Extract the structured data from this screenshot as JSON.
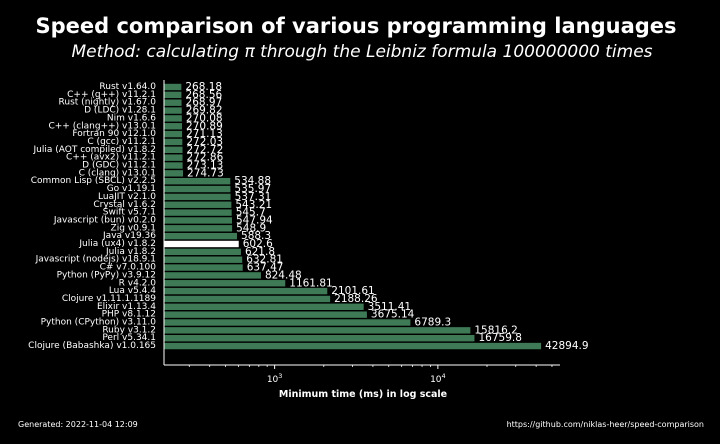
{
  "chart_data": {
    "type": "bar",
    "orientation": "horizontal",
    "title": "Speed comparison of various programming languages",
    "subtitle": "Method: calculating π through the Leibniz formula 100000000 times",
    "xlabel": "Minimum time (ms) in log scale",
    "ylabel": "",
    "xscale": "log",
    "xlim": [
      210,
      56000
    ],
    "xticks": [
      {
        "value": 1000,
        "base": "10",
        "exp": "3"
      },
      {
        "value": 10000,
        "base": "10",
        "exp": "4"
      }
    ],
    "bar_color": "#3d7a55",
    "highlight_color": "#ffffff",
    "highlight_index": 20,
    "categories": [
      "Rust v1.64.0",
      "C++ (g++) v11.2.1",
      "Rust (nightly) v1.67.0",
      "D (LDC) v1.28.1",
      "Nim v1.6.6",
      "C++ (clang++) v13.0.1",
      "Fortran 90 v12.1.0",
      "C (gcc) v11.2.1",
      "Julia (AOT compiled) v1.8.2",
      "C++ (avx2) v11.2.1",
      "D (GDC) v11.2.1",
      "C (clang) v13.0.1",
      "Common Lisp (SBCL) v2.2.5",
      "Go v1.19.1",
      "LuaJIT v2.1.0",
      "Crystal v1.6.2",
      "Swift v5.7.1",
      "Javascript (bun) v0.2.0",
      "Zig v0.9.1",
      "Java v19.36",
      "Julia (ux4) v1.8.2",
      "Julia v1.8.2",
      "Javascript (nodejs) v18.9.1",
      "C# v7.0.100",
      "Python (PyPy) v3.9.12",
      "R v4.2.0",
      "Lua v5.4.4",
      "Clojure v1.11.1.1189",
      "Elixir v1.13.4",
      "PHP v8.1.12",
      "Python (CPython) v3.11.0",
      "Ruby v3.1.2",
      "Perl v5.34.1",
      "Clojure (Babashka) v1.0.165"
    ],
    "values": [
      268.18,
      268.56,
      268.97,
      269.82,
      270.08,
      270.89,
      271.13,
      272.03,
      272.72,
      272.86,
      273.13,
      274.73,
      534.88,
      535.97,
      537.31,
      543.21,
      545.7,
      547.94,
      548.9,
      588.3,
      602.6,
      621.8,
      632.81,
      637.47,
      824.48,
      1161.81,
      2101.61,
      2188.26,
      3511.41,
      3675.14,
      6789.3,
      15816.2,
      16759.8,
      42894.9
    ],
    "value_labels": [
      "268.18",
      "268.56",
      "268.97",
      "269.82",
      "270.08",
      "270.89",
      "271.13",
      "272.03",
      "272.72",
      "272.86",
      "273.13",
      "274.73",
      "534.88",
      "535.97",
      "537.31",
      "543.21",
      "545.7",
      "547.94",
      "548.9",
      "588.3",
      "602.6",
      "621.8",
      "632.81",
      "637.47",
      "824.48",
      "1161.81",
      "2101.61",
      "2188.26",
      "3511.41",
      "3675.14",
      "6789.3",
      "15816.2",
      "16759.8",
      "42894.9"
    ]
  },
  "footer": {
    "generated": "Generated: 2022-11-04 12:09",
    "source": "https://github.com/niklas-heer/speed-comparison"
  }
}
